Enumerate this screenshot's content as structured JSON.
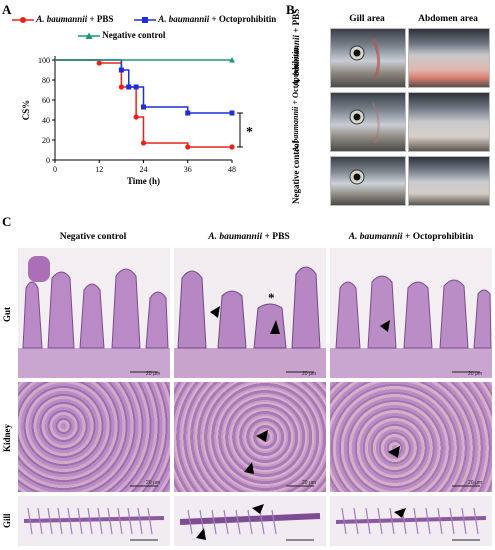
{
  "panels": {
    "A": "A",
    "B": "B",
    "C": "C"
  },
  "legend": {
    "pbs_italic": "A. baumannii",
    "pbs_rest": " + PBS",
    "octo_italic": "A. baumannii",
    "octo_rest": " + Octoprohibitin",
    "neg": "Negative control"
  },
  "colors": {
    "pbs": "#e8221a",
    "octo": "#1f2fd6",
    "neg": "#1a9a78"
  },
  "chart_data": {
    "type": "line",
    "xlabel": "Time  (h)",
    "ylabel": "CS%",
    "xlim": [
      0,
      48
    ],
    "ylim": [
      0,
      100
    ],
    "xticks": [
      "0",
      "12",
      "24",
      "36",
      "48"
    ],
    "yticks": [
      "0",
      "20",
      "40",
      "60",
      "80",
      "100"
    ],
    "annotation": "*",
    "series": [
      {
        "name": "A. baumannii + PBS",
        "x": [
          0,
          12,
          18,
          20,
          22,
          24,
          36,
          48
        ],
        "y": [
          100,
          97,
          73,
          73,
          43,
          17,
          13,
          13
        ]
      },
      {
        "name": "A. baumannii + Octoprohibitin",
        "x": [
          0,
          18,
          20,
          22,
          24,
          36,
          48
        ],
        "y": [
          100,
          90,
          73,
          73,
          53,
          47,
          47
        ]
      },
      {
        "name": "Negative control",
        "x": [
          0,
          48
        ],
        "y": [
          100,
          100
        ]
      }
    ]
  },
  "panelB": {
    "col_gill": "Gill area",
    "col_abdomen": "Abdomen area",
    "row1_italic": "A. baumannii",
    "row1_rest": " + PBS",
    "row2_italic": "A. baumannii",
    "row2_rest": " + Octoprohibitin",
    "row3": "Negative control"
  },
  "panelC": {
    "col_neg": "Negative control",
    "col_pbs_italic": "A. baumannii",
    "col_pbs_rest": " + PBS",
    "col_octo_italic": "A. baumannii",
    "col_octo_rest": " + Octoprohibitin",
    "row_gut": "Gut",
    "row_kidney": "Kidney",
    "row_gill": "Gill",
    "scale": "20 μm",
    "asterisk": "*"
  }
}
